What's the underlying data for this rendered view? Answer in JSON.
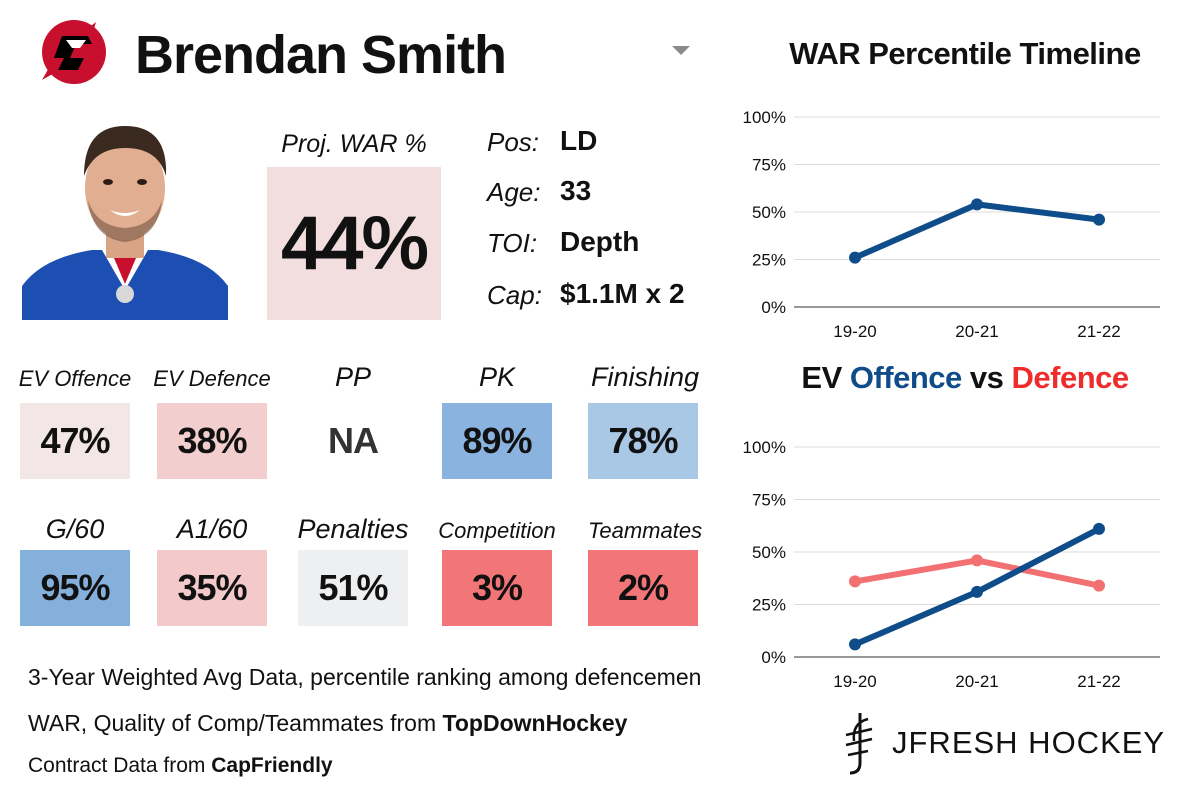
{
  "header": {
    "player_name": "Brendan Smith",
    "team_logo_icon": "devils-logo-icon",
    "dropdown_icon": "caret-down-icon"
  },
  "projection": {
    "label": "Proj. WAR %",
    "value": "44%",
    "color": "#f2dede"
  },
  "info": [
    {
      "label": "Pos:",
      "value": "LD"
    },
    {
      "label": "Age:",
      "value": "33"
    },
    {
      "label": "TOI:",
      "value": "Depth"
    },
    {
      "label": "Cap:",
      "value": "$1.1M x 2"
    }
  ],
  "metrics": [
    {
      "label": "EV Offence",
      "value": "47%",
      "color": "#f2e6e6"
    },
    {
      "label": "EV Defence",
      "value": "38%",
      "color": "#f3cece"
    },
    {
      "label": "PP",
      "value": "NA",
      "color": "#ffffff"
    },
    {
      "label": "PK",
      "value": "89%",
      "color": "#8ab4df"
    },
    {
      "label": "Finishing",
      "value": "78%",
      "color": "#a9c8e6"
    },
    {
      "label": "G/60",
      "value": "95%",
      "color": "#86b0dc"
    },
    {
      "label": "A1/60",
      "value": "35%",
      "color": "#f3c9c9"
    },
    {
      "label": "Penalties",
      "value": "51%",
      "color": "#eeeff0"
    },
    {
      "label": "Competition",
      "value": "3%",
      "color": "#f27577"
    },
    {
      "label": "Teammates",
      "value": "2%",
      "color": "#f27577"
    }
  ],
  "footer": {
    "line1": "3-Year Weighted Avg Data, percentile ranking among defencemen",
    "line2_prefix": "WAR, Quality of Comp/Teammates from ",
    "line2_source": "TopDownHockey",
    "line3_prefix": "Contract Data from ",
    "line3_source": "CapFriendly"
  },
  "brand": {
    "name": "JFRESH HOCKEY",
    "mark_icon": "jfresh-logo-icon"
  },
  "chart_data": [
    {
      "type": "line",
      "title": "WAR Percentile Timeline",
      "categories": [
        "19-20",
        "20-21",
        "21-22"
      ],
      "series": [
        {
          "name": "WAR",
          "values": [
            26,
            54,
            46
          ],
          "color": "#0f4c8a"
        }
      ],
      "ylim": [
        0,
        100
      ],
      "yticks": [
        0,
        25,
        50,
        75,
        100
      ],
      "ytick_labels": [
        "0%",
        "25%",
        "50%",
        "75%",
        "100%"
      ],
      "xlabel": "",
      "ylabel": "",
      "grid": true
    },
    {
      "type": "line",
      "title_parts": [
        {
          "text": "EV ",
          "color": "#111111"
        },
        {
          "text": "Offence",
          "color": "#0f4c8a"
        },
        {
          "text": " vs ",
          "color": "#111111"
        },
        {
          "text": "Defence",
          "color": "#ee2c2c"
        }
      ],
      "categories": [
        "19-20",
        "20-21",
        "21-22"
      ],
      "series": [
        {
          "name": "Defence",
          "values": [
            36,
            46,
            34
          ],
          "color": "#f27072"
        },
        {
          "name": "Offence",
          "values": [
            6,
            31,
            61
          ],
          "color": "#0f4c8a"
        }
      ],
      "ylim": [
        0,
        100
      ],
      "yticks": [
        0,
        25,
        50,
        75,
        100
      ],
      "ytick_labels": [
        "0%",
        "25%",
        "50%",
        "75%",
        "100%"
      ],
      "xlabel": "",
      "ylabel": "",
      "grid": true
    }
  ]
}
